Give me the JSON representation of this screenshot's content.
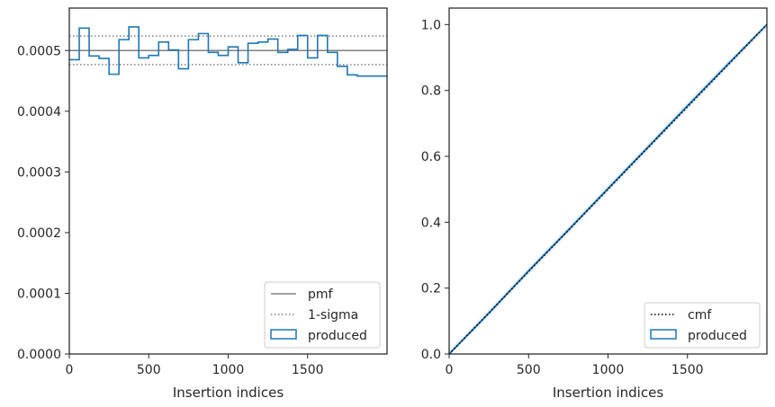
{
  "chart_data": [
    {
      "type": "histogram-step",
      "xlabel": "Insertion indices",
      "ylabel": "",
      "xlim": [
        0,
        2000
      ],
      "ylim": [
        0,
        0.00057
      ],
      "x_ticks": [
        0,
        500,
        1000,
        1500
      ],
      "x_tick_labels": [
        "0",
        "500",
        "1000",
        "1500"
      ],
      "y_ticks": [
        0,
        0.0001,
        0.0002,
        0.0003,
        0.0004,
        0.0005
      ],
      "y_tick_labels": [
        "0.0000",
        "0.0001",
        "0.0002",
        "0.0003",
        "0.0004",
        "0.0005"
      ],
      "pmf": 0.0005,
      "sigma_upper": 0.000524,
      "sigma_lower": 0.000477,
      "produced_bin_edges": [
        0,
        62.5,
        125,
        187.5,
        250,
        312.5,
        375,
        437.5,
        500,
        562.5,
        625,
        687.5,
        750,
        812.5,
        875,
        937.5,
        1000,
        1062.5,
        1125,
        1187.5,
        1250,
        1312.5,
        1375,
        1437.5,
        1500,
        1562.5,
        1625,
        1687.5,
        1750,
        1812.5,
        1875,
        1937.5,
        2000
      ],
      "produced_values": [
        0.000485,
        0.000537,
        0.000491,
        0.000487,
        0.000461,
        0.000518,
        0.000539,
        0.000488,
        0.000492,
        0.000514,
        0.000501,
        0.00047,
        0.000518,
        0.000528,
        0.000497,
        0.000492,
        0.000506,
        0.00048,
        0.000512,
        0.000514,
        0.000519,
        0.000497,
        0.000502,
        0.000525,
        0.000488,
        0.000525,
        0.000497,
        0.000474,
        0.00046,
        0.000458,
        0.000458,
        0.000458
      ],
      "legend_position": "lower-right",
      "legend": [
        {
          "label": "pmf",
          "style": "solid",
          "color": "#808080"
        },
        {
          "label": "1-sigma",
          "style": "dotted",
          "color": "#808080"
        },
        {
          "label": "produced",
          "style": "patch",
          "color": "#1f77b4"
        }
      ],
      "colors": {
        "produced": "#1f77b4",
        "reference": "#808080",
        "axes": "#262626"
      }
    },
    {
      "type": "line",
      "xlabel": "Insertion indices",
      "ylabel": "",
      "xlim": [
        0,
        2000
      ],
      "ylim": [
        0,
        1.05
      ],
      "x_ticks": [
        0,
        500,
        1000,
        1500
      ],
      "x_tick_labels": [
        "0",
        "500",
        "1000",
        "1500"
      ],
      "y_ticks": [
        0,
        0.2,
        0.4,
        0.6,
        0.8,
        1.0
      ],
      "y_tick_labels": [
        "0.0",
        "0.2",
        "0.4",
        "0.6",
        "0.8",
        "1.0"
      ],
      "cmf": {
        "x": [
          0,
          2000
        ],
        "y": [
          0,
          1.0
        ]
      },
      "produced": {
        "x": [
          0,
          250,
          500,
          750,
          1000,
          1250,
          1500,
          1750,
          2000
        ],
        "y": [
          0,
          0.124,
          0.252,
          0.376,
          0.502,
          0.627,
          0.753,
          0.877,
          1.0
        ]
      },
      "legend_position": "lower-right",
      "legend": [
        {
          "label": "cmf",
          "style": "dotted",
          "color": "#000000"
        },
        {
          "label": "produced",
          "style": "patch",
          "color": "#1f77b4"
        }
      ],
      "colors": {
        "produced": "#1f77b4",
        "reference": "#000000",
        "band": "#aec7e8"
      }
    }
  ]
}
